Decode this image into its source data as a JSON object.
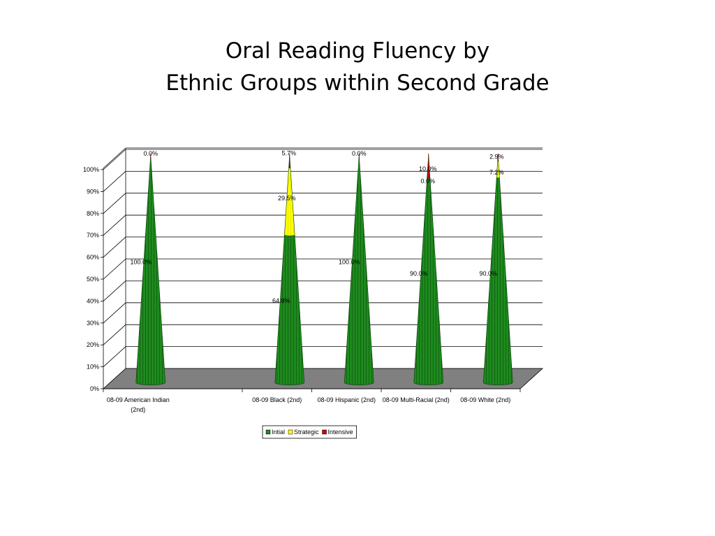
{
  "title": {
    "line1": "Oral Reading Fluency by",
    "line2": "Ethnic Groups within Second Grade"
  },
  "legend": {
    "items": [
      {
        "label": "Intial",
        "color": "#1e8a1e"
      },
      {
        "label": "Strategic",
        "color": "#ffff00"
      },
      {
        "label": "Intensive",
        "color": "#cc0000"
      }
    ]
  },
  "chart_data": {
    "type": "bar",
    "style": "3d-cone-stacked",
    "title": "Oral Reading Fluency by Ethnic Groups within Second Grade",
    "xlabel": "",
    "ylabel": "",
    "ylim": [
      0,
      100
    ],
    "yticks": [
      "0%",
      "10%",
      "20%",
      "30%",
      "40%",
      "50%",
      "60%",
      "70%",
      "80%",
      "90%",
      "100%"
    ],
    "grid": true,
    "legend_position": "bottom",
    "categories": [
      {
        "line1": "08-09 American Indian",
        "line2": "(2nd)"
      },
      {
        "line1": "",
        "line2": ""
      },
      {
        "line1": "08-09 Black (2nd)",
        "line2": ""
      },
      {
        "line1": "08-09 Hispanic (2nd)",
        "line2": ""
      },
      {
        "line1": "08-09 Multi-Racial (2nd)",
        "line2": ""
      },
      {
        "line1": "08-09 White (2nd)",
        "line2": ""
      }
    ],
    "series": [
      {
        "name": "Intial",
        "color": "#1e8a1e",
        "values": [
          100,
          null,
          64.8,
          100,
          90,
          90
        ],
        "labels": [
          "100.0%",
          "",
          "64.8%",
          "100.0%",
          "90.0%",
          "90.0%"
        ]
      },
      {
        "name": "Strategic",
        "color": "#ffff00",
        "values": [
          0,
          null,
          29.5,
          0,
          0,
          7.2
        ],
        "labels": [
          "",
          "",
          "29.5%",
          "",
          "0.0%",
          "7.2%"
        ]
      },
      {
        "name": "Intensive",
        "color": "#cc0000",
        "values": [
          0,
          null,
          5.7,
          0,
          10,
          2.9
        ],
        "labels": [
          "0.0%",
          "",
          "5.7%",
          "0.0%",
          "10.0%",
          "2.9%"
        ]
      }
    ]
  }
}
